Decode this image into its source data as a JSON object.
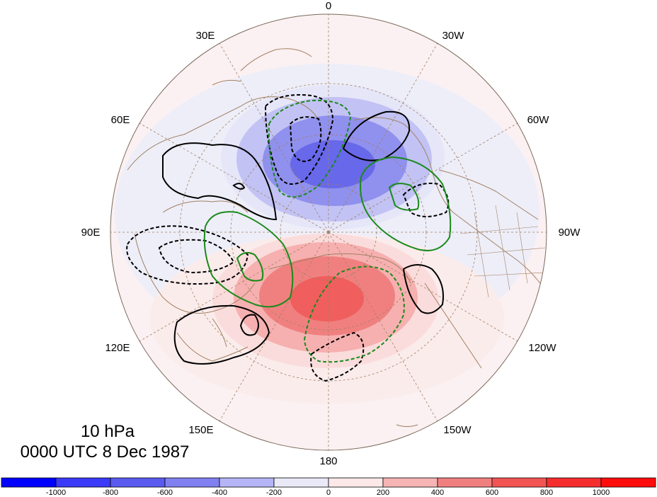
{
  "map": {
    "projection": "north-polar-stereographic",
    "longitude_labels": {
      "top": "0",
      "top_left": "30E",
      "top_right": "30W",
      "upper_left": "60E",
      "upper_right": "60W",
      "left": "90E",
      "right": "90W",
      "lower_left": "120E",
      "lower_right": "120W",
      "bottom_left": "150E",
      "bottom_right": "150W",
      "bottom": "180"
    },
    "title": {
      "level": "10 hPa",
      "time": "0000 UTC 8 Dec 1987"
    },
    "colors": {
      "negative_max": "#0000ff",
      "positive_max": "#ff0000",
      "coastline": "#a08060",
      "grid": "#a08060",
      "contour_black": "#000000",
      "contour_green": "#1a8a1a"
    }
  },
  "colorbar": {
    "tick_labels": [
      "-1000",
      "-800",
      "-600",
      "-400",
      "-200",
      "0",
      "200",
      "400",
      "600",
      "800",
      "1000"
    ],
    "colors": [
      "#0000ff",
      "#3a3af8",
      "#5a5af0",
      "#8080f0",
      "#b4b4f6",
      "#e9e9f8",
      "#fde8e8",
      "#f6b4b4",
      "#f08080",
      "#f25454",
      "#f52d2d",
      "#ff0d0d"
    ]
  }
}
